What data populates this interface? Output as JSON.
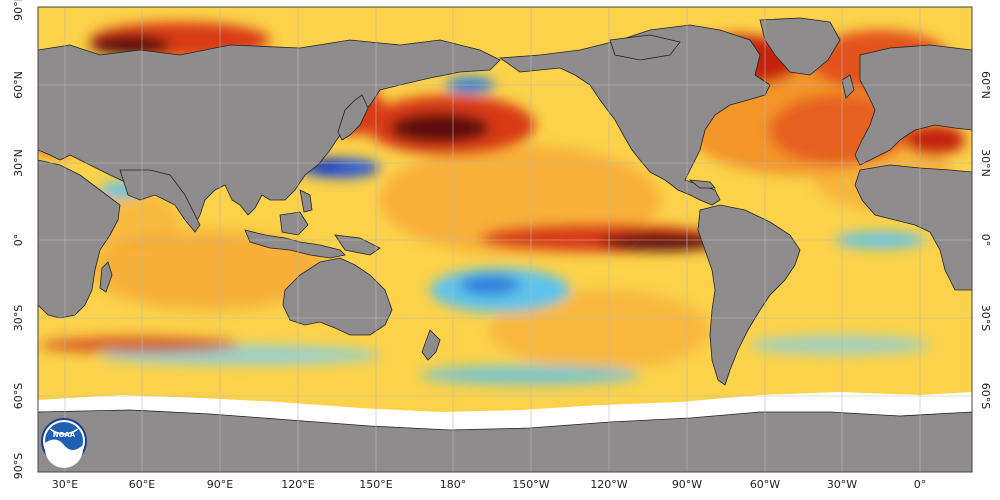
{
  "map": {
    "colors": {
      "ocean_base": "#fbd24a",
      "land": "#8f8c8d",
      "ice": "#ffffff",
      "warm_strong": "#c4210f",
      "warm_very_strong": "#4a0a0a",
      "warm_moderate": "#f07a1e",
      "cool_light": "#5fc3ea",
      "cool_strong": "#1433b8",
      "grid": "#b9b9b9",
      "frame": "#444444"
    },
    "longitude_labels": [
      "30°E",
      "60°E",
      "90°E",
      "120°E",
      "150°E",
      "180°",
      "150°W",
      "120°W",
      "90°W",
      "60°W",
      "30°W",
      "0°"
    ],
    "latitude_labels_left": [
      "90°N",
      "60°N",
      "30°N",
      "0°",
      "30°S",
      "60°S",
      "90°S"
    ],
    "latitude_labels_right": [
      "60°N",
      "30°N",
      "0°",
      "30°S",
      "60°S"
    ],
    "logo": {
      "text": "NOAA",
      "icon": "noaa-logo-icon"
    }
  }
}
